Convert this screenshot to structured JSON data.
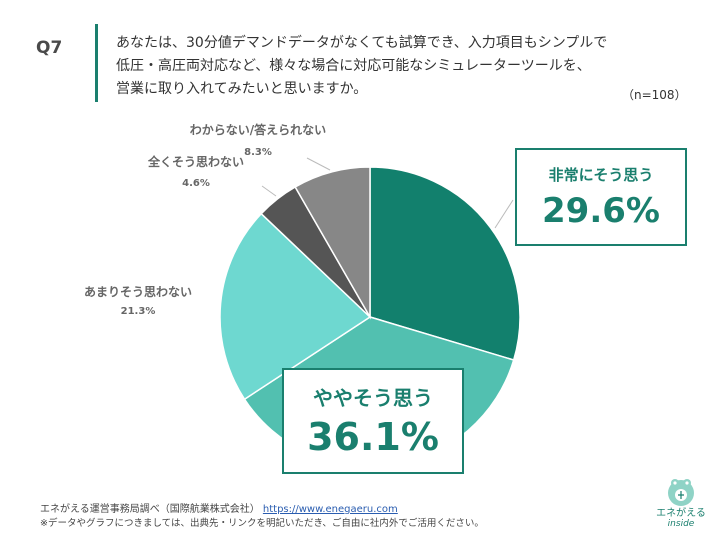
{
  "question": {
    "label": "Q7",
    "lines": [
      "あなたは、30分値デマンドデータがなくても試算でき、入力項目もシンプルで",
      "低圧・高圧両対応など、様々な場合に対応可能なシミュレーターツールを、",
      "営業に取り入れてみたいと思いますか。"
    ],
    "sample": "（n=108）"
  },
  "chart_data": {
    "type": "pie",
    "start": "12 o'clock, clockwise",
    "slices": [
      {
        "label": "非常にそう思う",
        "value": 29.6,
        "display": "29.6%",
        "color": "#12806d"
      },
      {
        "label": "ややそう思う",
        "value": 36.1,
        "display": "36.1%",
        "color": "#52c0b0"
      },
      {
        "label": "あまりそう思わない",
        "value": 21.3,
        "display": "21.3%",
        "color": "#6ed8d0"
      },
      {
        "label": "全くそう思わない",
        "value": 4.6,
        "display": "4.6%",
        "color": "#555555"
      },
      {
        "label": "わからない/答えられない",
        "value": 8.3,
        "display": "8.3%",
        "color": "#878787"
      }
    ]
  },
  "footer": {
    "source": "エネがえる運営事務局調べ（国際航業株式会社）",
    "url": "https://www.enegaeru.com",
    "note": "※データやグラフにつきましては、出典先・リンクを明記いただき、ご自由に社内外でご活用ください。"
  },
  "logo": {
    "name": "エネがえる",
    "sub": "inside"
  }
}
